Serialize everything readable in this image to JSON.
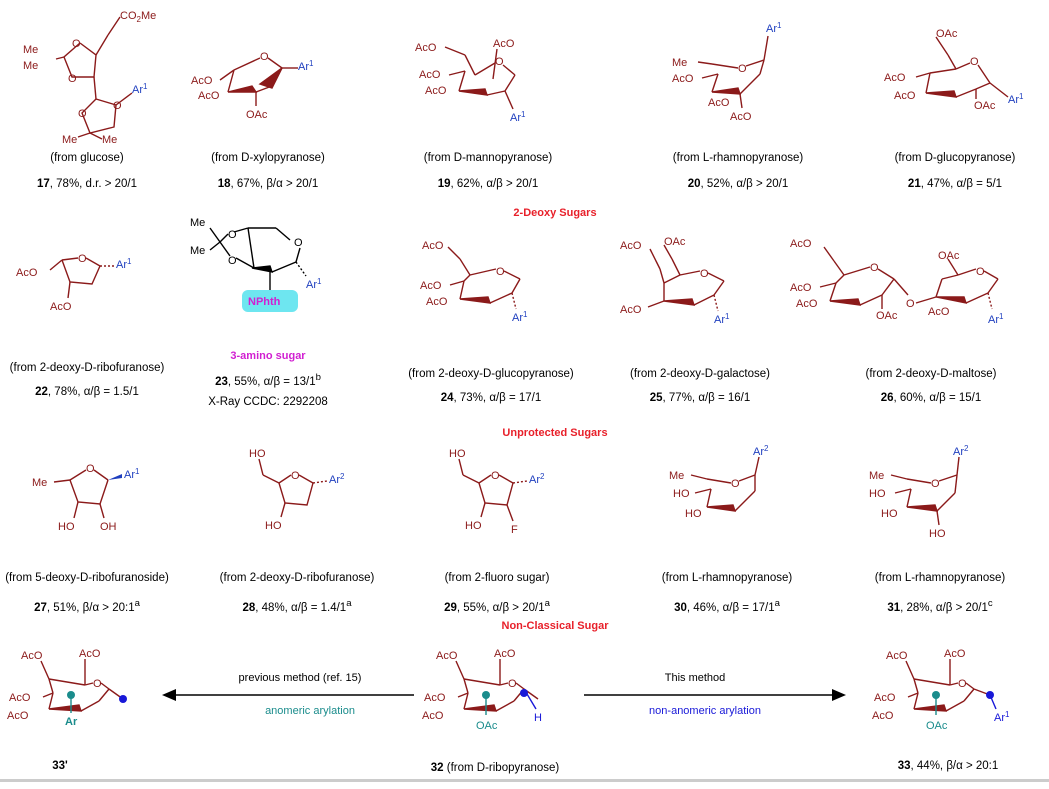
{
  "colors": {
    "ring": "#8b1a1a",
    "aryl": "#1f3fbf",
    "teal": "#1a8c8c",
    "section": "#e8202a",
    "highlight": "#6ee6f0",
    "amino": "#d11fd1",
    "dot": "#1818d8"
  },
  "sections": {
    "deoxy": "2-Deoxy Sugars",
    "unprotected": "Unprotected Sugars",
    "nonclassical": "Non-Classical Sugar"
  },
  "labels": {
    "Me": "Me",
    "AcO": "AcO",
    "OAc": "OAc",
    "O": "O",
    "HO": "HO",
    "OH": "OH",
    "F": "F",
    "H": "H",
    "CO2Me_a": "CO",
    "CO2Me_b": "2",
    "CO2Me_c": "Me",
    "Ar": "Ar",
    "sup1": "1",
    "sup2": "2",
    "NPhth": "NPhth"
  },
  "compounds": [
    {
      "id": "c17",
      "source": "(from glucose)",
      "num": "17",
      "rest": ", 78%, d.r. > 20/1",
      "sup": ""
    },
    {
      "id": "c18",
      "source": "(from D-xylopyranose)",
      "num": "18",
      "rest": ", 67%, β/α > 20/1",
      "sup": ""
    },
    {
      "id": "c19",
      "source": "(from D-mannopyranose)",
      "num": "19",
      "rest": ", 62%, α/β > 20/1",
      "sup": ""
    },
    {
      "id": "c20",
      "source": "(from L-rhamnopyranose)",
      "num": "20",
      "rest": ", 52%, α/β > 20/1",
      "sup": ""
    },
    {
      "id": "c21",
      "source": "(from D-glucopyranose)",
      "num": "21",
      "rest": ", 47%, α/β = 5/1",
      "sup": ""
    },
    {
      "id": "c22",
      "source": "(from 2-deoxy-D-ribofuranose)",
      "num": "22",
      "rest": ", 78%, α/β = 1.5/1",
      "sup": ""
    },
    {
      "id": "c23",
      "source": "3-amino sugar",
      "num": "23",
      "rest": ", 55%, α/β = 13/1",
      "sup": "b"
    },
    {
      "id": "c24",
      "source": "(from 2-deoxy-D-glucopyranose)",
      "num": "24",
      "rest": ", 73%, α/β = 17/1",
      "sup": ""
    },
    {
      "id": "c25",
      "source": "(from 2-deoxy-D-galactose)",
      "num": "25",
      "rest": ", 77%, α/β = 16/1",
      "sup": ""
    },
    {
      "id": "c26",
      "source": "(from 2-deoxy-D-maltose)",
      "num": "26",
      "rest": ", 60%, α/β = 15/1",
      "sup": ""
    },
    {
      "id": "c27",
      "source": "(from 5-deoxy-D-ribofuranoside)",
      "num": "27",
      "rest": ", 51%, β/α > 20:1",
      "sup": "a"
    },
    {
      "id": "c28",
      "source": "(from 2-deoxy-D-ribofuranose)",
      "num": "28",
      "rest": ", 48%, α/β = 1.4/1",
      "sup": "a"
    },
    {
      "id": "c29",
      "source": "(from 2-fluoro sugar)",
      "num": "29",
      "rest": ", 55%, α/β > 20/1",
      "sup": "a"
    },
    {
      "id": "c30",
      "source": "(from L-rhamnopyranose)",
      "num": "30",
      "rest": ", 46%, α/β = 17/1",
      "sup": "a"
    },
    {
      "id": "c31",
      "source": "(from L-rhamnopyranose)",
      "num": "31",
      "rest": ", 28%, α/β > 20/1",
      "sup": "c"
    }
  ],
  "xray": "X-Ray CCDC: 2292208",
  "bottom": {
    "left_num": "33'",
    "center_num": "32",
    "center_rest": " (from D-ribopyranose)",
    "right_num": "33",
    "right_rest": ", 44%, β/α > 20:1",
    "left_arrow_top": "previous method (ref. 15)",
    "left_arrow_bottom": "anomeric arylation",
    "right_arrow_top": "This method",
    "right_arrow_bottom": "non-anomeric arylation"
  }
}
